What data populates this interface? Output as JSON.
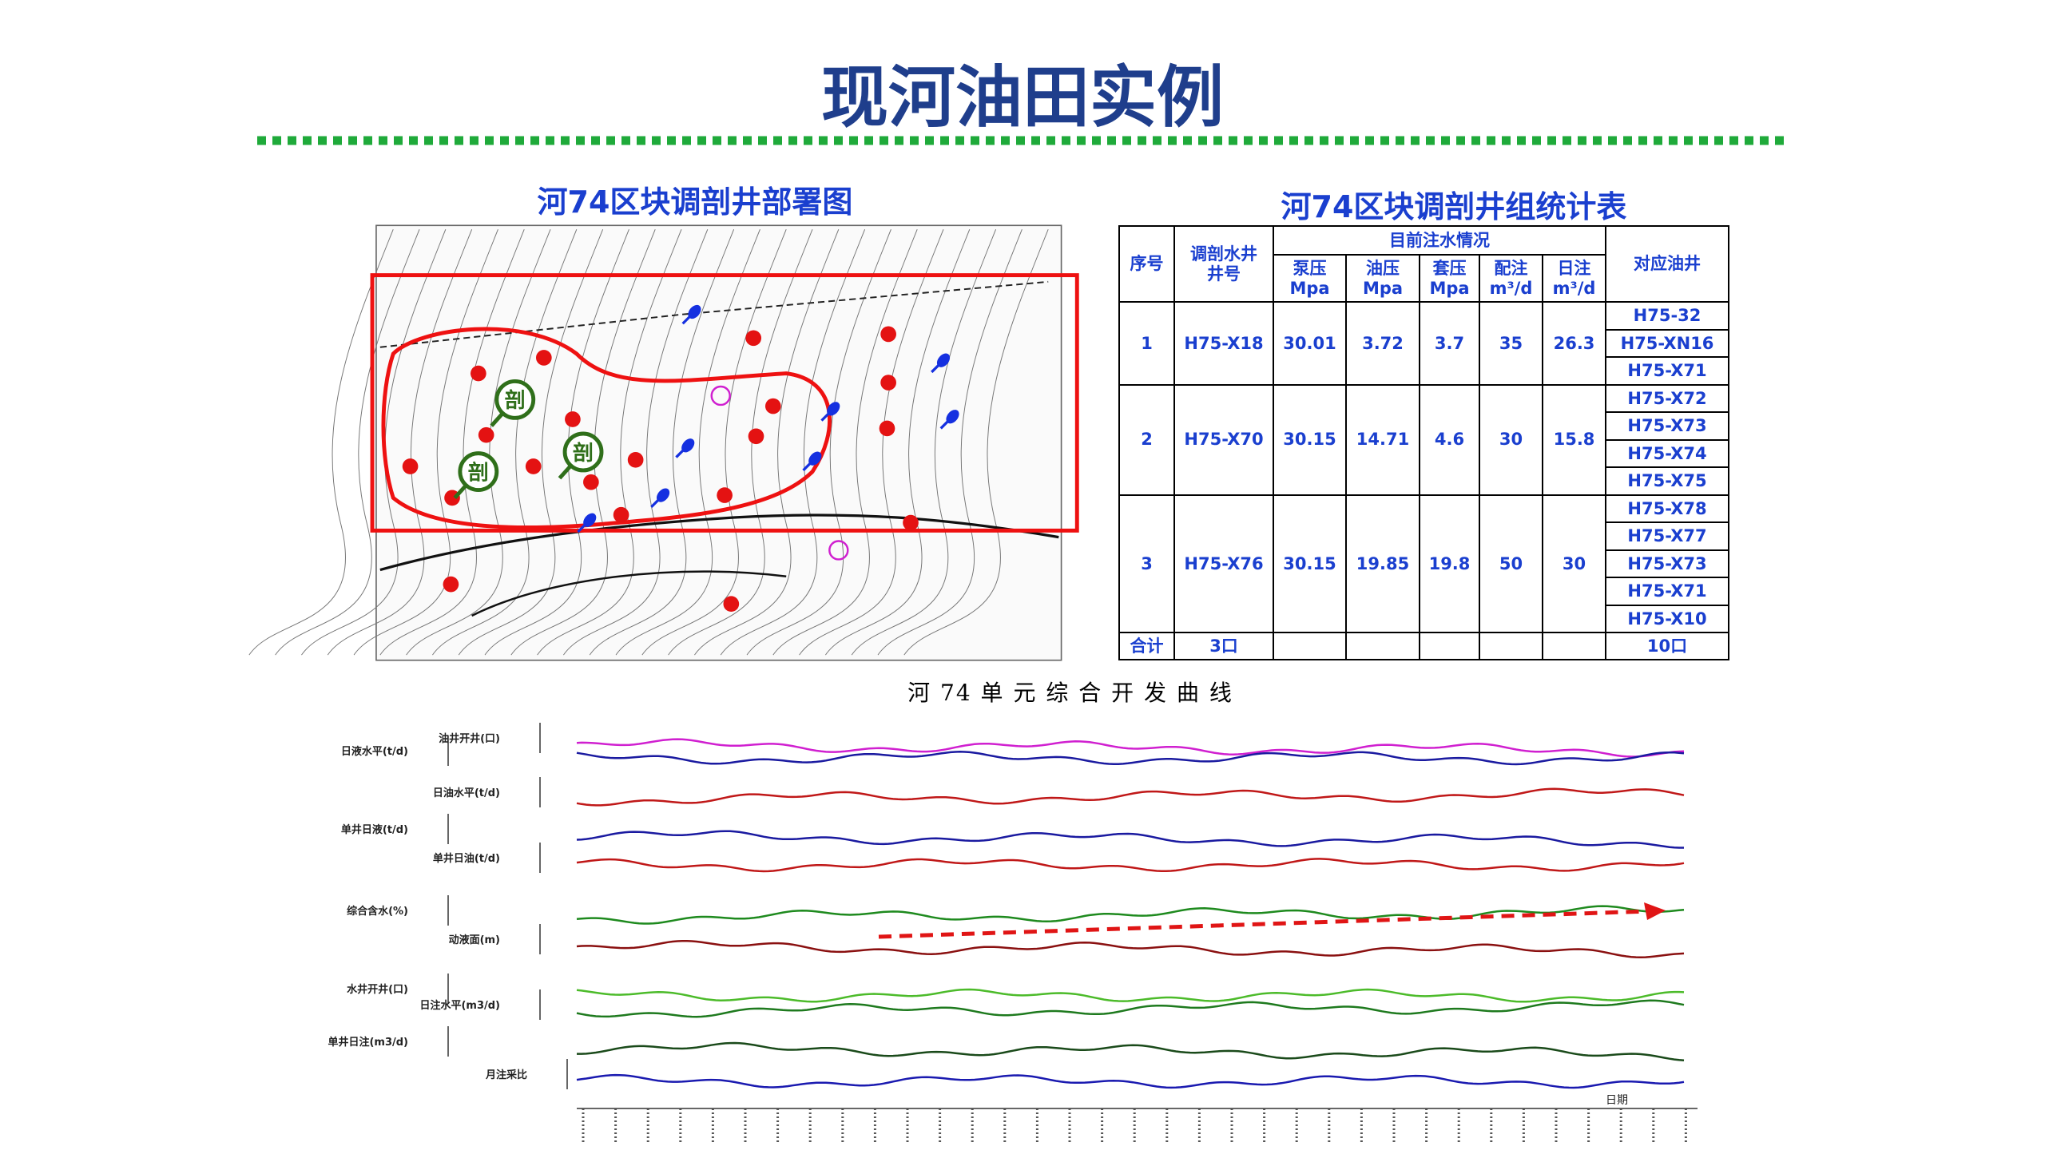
{
  "title": "现河油田实例",
  "map": {
    "title": "河74区块调剖井部署图",
    "marker": "剖"
  },
  "table": {
    "title": "河74区块调剖井组统计表",
    "header": {
      "seq": "序号",
      "well": [
        "调剖水井",
        "井号"
      ],
      "group": "目前注水情况",
      "cols": [
        [
          "泵压",
          "Mpa"
        ],
        [
          "油压",
          "Mpa"
        ],
        [
          "套压",
          "Mpa"
        ],
        [
          "配注",
          "m³/d"
        ],
        [
          "日注",
          "m³/d"
        ]
      ],
      "oil": "对应油井"
    },
    "rows": [
      {
        "seq": "1",
        "well": "H75-X18",
        "values": [
          "30.01",
          "3.72",
          "3.7",
          "35",
          "26.3"
        ],
        "oil": [
          "H75-32",
          "H75-XN16",
          "H75-X71"
        ]
      },
      {
        "seq": "2",
        "well": "H75-X70",
        "values": [
          "30.15",
          "14.71",
          "4.6",
          "30",
          "15.8"
        ],
        "oil": [
          "H75-X72",
          "H75-X73",
          "H75-X74",
          "H75-X75"
        ]
      },
      {
        "seq": "3",
        "well": "H75-X76",
        "values": [
          "30.15",
          "19.85",
          "19.8",
          "50",
          "30"
        ],
        "oil": [
          "H75-X78",
          "H75-X77",
          "H75-X73",
          "H75-X71",
          "H75-X10"
        ]
      }
    ],
    "total": {
      "label": "合计",
      "wells": "3口",
      "oil": "10口"
    }
  },
  "curves": {
    "title": "河 74 单 元 综 合 开 发 曲 线",
    "rows": [
      "油井开井(口)",
      "日液水平(t/d)",
      "日油水平(t/d)",
      "单井日液(t/d)",
      "单井日油(t/d)",
      "综合含水(%)",
      "动液面(m)",
      "水井开井(口)",
      "日注水平(m3/d)",
      "单井日注(m3/d)",
      "月注采比"
    ],
    "x_label": "日期"
  }
}
